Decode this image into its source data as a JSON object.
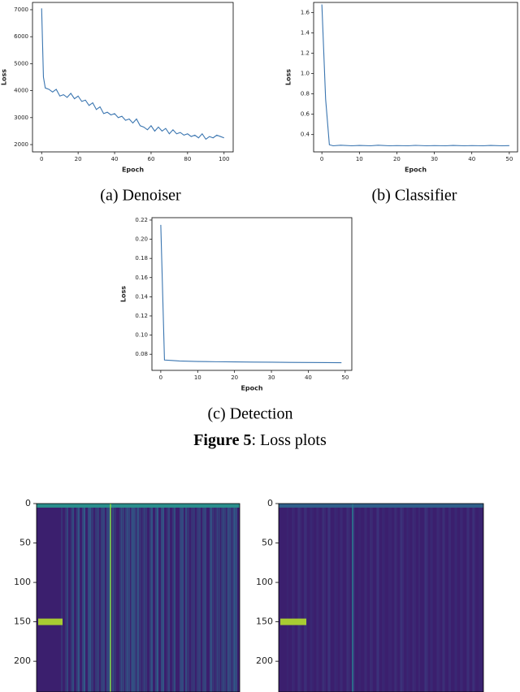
{
  "chart_data": [
    {
      "type": "line",
      "subcaption": "(a) Denoiser",
      "xlabel": "Epoch",
      "ylabel": "Loss",
      "color": "#3a75b0",
      "x": [
        0,
        1,
        2,
        4,
        6,
        8,
        10,
        12,
        14,
        16,
        18,
        20,
        22,
        24,
        26,
        28,
        30,
        32,
        34,
        36,
        38,
        40,
        42,
        44,
        46,
        48,
        50,
        52,
        54,
        56,
        58,
        60,
        62,
        64,
        66,
        68,
        70,
        72,
        74,
        76,
        78,
        80,
        82,
        84,
        86,
        88,
        90,
        92,
        94,
        96,
        98,
        100
      ],
      "values": [
        7050,
        4500,
        4100,
        4050,
        3950,
        4050,
        3800,
        3850,
        3750,
        3900,
        3700,
        3800,
        3600,
        3650,
        3450,
        3550,
        3300,
        3400,
        3150,
        3200,
        3100,
        3150,
        3000,
        3050,
        2900,
        2950,
        2800,
        2950,
        2700,
        2650,
        2550,
        2700,
        2500,
        2650,
        2500,
        2600,
        2400,
        2550,
        2400,
        2450,
        2350,
        2400,
        2300,
        2350,
        2250,
        2400,
        2200,
        2300,
        2250,
        2350,
        2300,
        2250
      ],
      "xlim": [
        -5,
        105
      ],
      "ylim": [
        1730,
        7270
      ],
      "xticks": [
        0,
        20,
        40,
        60,
        80,
        100
      ],
      "yticks": [
        2000,
        3000,
        4000,
        5000,
        6000,
        7000
      ]
    },
    {
      "type": "line",
      "subcaption": "(b) Classifier",
      "xlabel": "Epoch",
      "ylabel": "Loss",
      "color": "#3a75b0",
      "x": [
        0,
        1,
        2,
        3,
        5,
        8,
        10,
        13,
        15,
        18,
        20,
        23,
        25,
        28,
        30,
        33,
        35,
        38,
        40,
        43,
        45,
        48,
        50
      ],
      "values": [
        1.68,
        0.75,
        0.3,
        0.29,
        0.295,
        0.29,
        0.293,
        0.29,
        0.295,
        0.29,
        0.292,
        0.29,
        0.294,
        0.29,
        0.292,
        0.29,
        0.293,
        0.29,
        0.292,
        0.29,
        0.293,
        0.29,
        0.291
      ],
      "xlim": [
        -2.2,
        52.2
      ],
      "ylim": [
        0.23,
        1.7
      ],
      "xticks": [
        0,
        10,
        20,
        30,
        40,
        50
      ],
      "yticks": [
        0.4,
        0.6,
        0.8,
        {
          "value": 1,
          "label": "1.0"
        },
        1.2,
        1.4,
        1.6
      ]
    },
    {
      "type": "line",
      "subcaption": "(c) Detection",
      "xlabel": "Epoch",
      "ylabel": "Loss",
      "color": "#3a75b0",
      "x": [
        0,
        1,
        3,
        5,
        10,
        15,
        20,
        25,
        30,
        35,
        40,
        45,
        49
      ],
      "values": [
        0.215,
        0.074,
        0.0735,
        0.073,
        0.0725,
        0.0722,
        0.072,
        0.0718,
        0.0717,
        0.0715,
        0.0714,
        0.0713,
        0.0712
      ],
      "xlim": [
        -2.4,
        51.8
      ],
      "ylim": [
        0.0632,
        0.2225
      ],
      "xticks": [
        0,
        10,
        20,
        30,
        40,
        50
      ],
      "yticks": [
        0.08,
        {
          "value": 0.1,
          "label": "0.10"
        },
        0.12,
        0.14,
        0.16,
        0.18,
        {
          "value": 0.2,
          "label": "0.20"
        },
        0.22
      ]
    },
    {
      "type": "heatmap",
      "ylim": [
        0,
        239
      ],
      "yticks": [
        0,
        50,
        100,
        150,
        200
      ]
    },
    {
      "type": "heatmap",
      "ylim": [
        0,
        239
      ],
      "yticks": [
        0,
        50,
        100,
        150,
        200
      ]
    }
  ],
  "figure_caption": {
    "label": "Figure 5",
    "text": ": Loss plots"
  }
}
